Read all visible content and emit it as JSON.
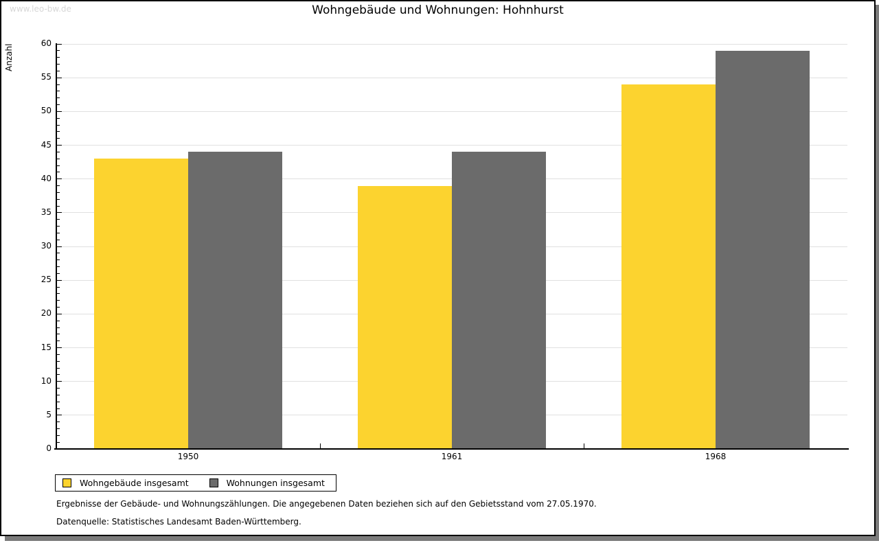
{
  "watermark": "www.leo-bw.de",
  "chart_data": {
    "type": "bar",
    "title": "Wohngebäude und Wohnungen: Hohnhurst",
    "xlabel": "",
    "ylabel": "Anzahl",
    "categories": [
      "1950",
      "1961",
      "1968"
    ],
    "series": [
      {
        "name": "Wohngebäude insgesamt",
        "color": "#fcd32f",
        "values": [
          43,
          39,
          54
        ]
      },
      {
        "name": "Wohnungen insgesamt",
        "color": "#6b6b6b",
        "values": [
          44,
          44,
          59
        ]
      }
    ],
    "ylim": [
      0,
      60
    ],
    "ytick_step": 5,
    "minor_tick_step": 1,
    "grid": true,
    "gridline_color": "#e0e0e0",
    "legend_position": "bottom-left"
  },
  "footer": {
    "note1": "Ergebnisse der Gebäude- und Wohnungszählungen. Die angegebenen Daten beziehen sich auf den Gebietsstand vom 27.05.1970.",
    "note2": "Datenquelle: Statistisches Landesamt Baden-Württemberg."
  }
}
